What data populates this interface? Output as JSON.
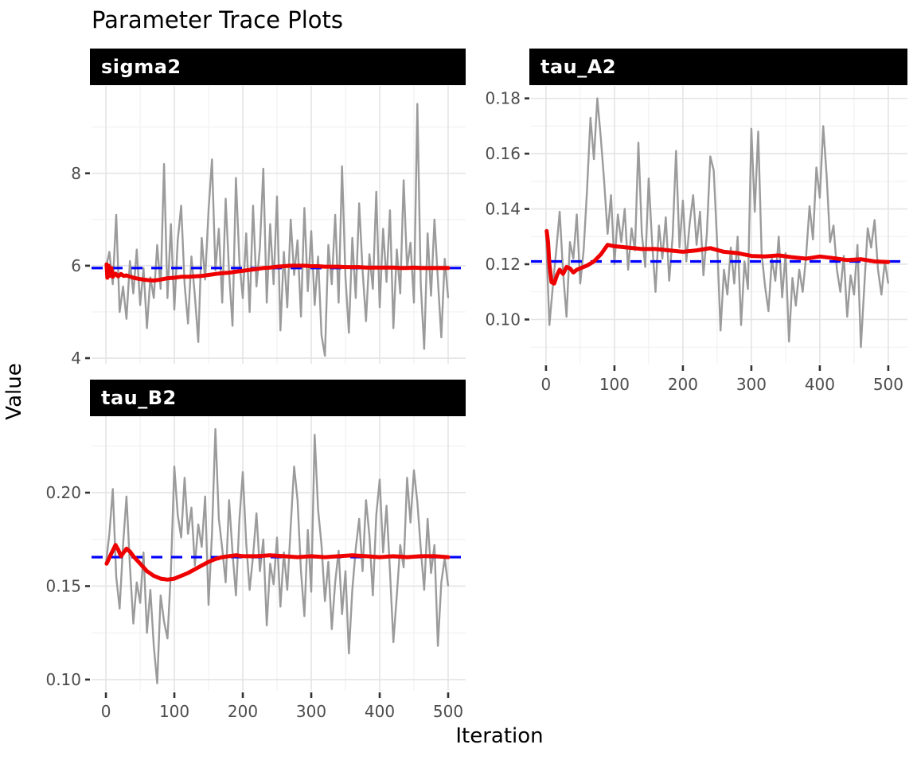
{
  "title": "Parameter Trace Plots",
  "x_axis_title": "Iteration",
  "y_axis_title": "Value",
  "colors": {
    "trace": "#9b9b9b",
    "running_mean": "#ee0000",
    "reference": "#0000ff",
    "grid_major": "#e4e4e4",
    "grid_minor": "#f1f1f1",
    "tick_mark": "#333333",
    "tick_label": "#4d4d4d",
    "strip_bg": "#000000",
    "strip_text": "#ffffff",
    "panel_bg": "#ffffff"
  },
  "chart_data": [
    {
      "type": "line",
      "facet_label": "sigma2",
      "xlim": [
        -21,
        525.6
      ],
      "ylim": [
        3.88,
        9.89
      ],
      "x_ticks": {
        "major": [
          0,
          100,
          200,
          300,
          400,
          500
        ],
        "minor": [
          50,
          150,
          250,
          350,
          450
        ],
        "labels": [
          "0",
          "100",
          "200",
          "300",
          "400",
          "500"
        ],
        "show_labels": false
      },
      "y_ticks": {
        "major": [
          4,
          6,
          8
        ],
        "minor": [
          5,
          7,
          9
        ],
        "labels": [
          "4",
          "6",
          "8"
        ]
      },
      "reference_value": 5.95,
      "series": {
        "trace": {
          "name": "samples",
          "x_start": 0,
          "x_step": 5,
          "values": [
            5.95,
            6.3,
            5.6,
            7.1,
            5.0,
            5.55,
            4.85,
            6.1,
            5.4,
            6.35,
            5.15,
            5.95,
            4.65,
            5.75,
            5.3,
            6.45,
            5.5,
            8.2,
            5.3,
            6.9,
            5.05,
            6.55,
            7.3,
            5.6,
            4.75,
            6.2,
            5.35,
            4.35,
            6.6,
            5.7,
            7.2,
            8.3,
            5.9,
            6.8,
            5.2,
            7.45,
            5.85,
            4.7,
            7.9,
            6.1,
            5.3,
            6.7,
            5.0,
            7.3,
            5.55,
            6.4,
            8.1,
            5.2,
            6.9,
            5.6,
            7.5,
            4.6,
            6.3,
            5.1,
            7.0,
            5.8,
            6.55,
            4.9,
            7.25,
            5.45,
            6.75,
            5.15,
            6.2,
            4.5,
            4.05,
            6.45,
            5.6,
            7.1,
            5.2,
            8.15,
            5.75,
            4.55,
            6.6,
            5.3,
            7.35,
            5.9,
            4.8,
            6.25,
            5.5,
            7.6,
            5.1,
            6.8,
            5.65,
            7.2,
            4.65,
            6.35,
            5.4,
            7.85,
            5.95,
            6.5,
            5.2,
            9.5,
            5.6,
            4.2,
            6.7,
            5.35,
            7.0,
            5.7,
            4.45,
            6.15,
            5.3
          ]
        },
        "running_mean": {
          "name": "running mean",
          "x": [
            1,
            2,
            4,
            6,
            8,
            10,
            14,
            18,
            22,
            26,
            30,
            40,
            50,
            60,
            70,
            80,
            90,
            100,
            110,
            120,
            130,
            140,
            150,
            160,
            170,
            180,
            190,
            200,
            210,
            220,
            230,
            240,
            250,
            260,
            270,
            280,
            290,
            300,
            310,
            320,
            330,
            340,
            350,
            360,
            370,
            380,
            390,
            400,
            410,
            420,
            430,
            440,
            450,
            460,
            470,
            480,
            490,
            500
          ],
          "y": [
            6.03,
            5.74,
            6.0,
            5.78,
            5.95,
            5.76,
            5.83,
            5.77,
            5.82,
            5.78,
            5.79,
            5.74,
            5.71,
            5.69,
            5.68,
            5.7,
            5.73,
            5.74,
            5.76,
            5.76,
            5.77,
            5.78,
            5.8,
            5.82,
            5.84,
            5.85,
            5.87,
            5.89,
            5.91,
            5.93,
            5.95,
            5.96,
            5.98,
            5.99,
            6.0,
            6.0,
            6.0,
            5.99,
            5.99,
            5.98,
            5.98,
            5.98,
            5.97,
            5.97,
            5.97,
            5.96,
            5.96,
            5.96,
            5.96,
            5.96,
            5.95,
            5.95,
            5.96,
            5.95,
            5.95,
            5.95,
            5.95,
            5.95
          ]
        }
      }
    },
    {
      "type": "line",
      "facet_label": "tau_A2",
      "xlim": [
        -22,
        528
      ],
      "ylim": [
        0.084,
        0.1845
      ],
      "x_ticks": {
        "major": [
          0,
          100,
          200,
          300,
          400,
          500
        ],
        "minor": [
          50,
          150,
          250,
          350,
          450
        ],
        "labels": [
          "0",
          "100",
          "200",
          "300",
          "400",
          "500"
        ],
        "show_labels": true
      },
      "y_ticks": {
        "major": [
          0.1,
          0.12,
          0.14,
          0.16,
          0.18
        ],
        "minor": [
          0.09,
          0.11,
          0.13,
          0.15,
          0.17
        ],
        "labels": [
          "0.10",
          "0.12",
          "0.14",
          "0.16",
          "0.18"
        ]
      },
      "reference_value": 0.121,
      "series": {
        "trace": {
          "name": "samples",
          "x_start": 0,
          "x_step": 5,
          "values": [
            0.131,
            0.098,
            0.112,
            0.125,
            0.139,
            0.117,
            0.101,
            0.128,
            0.122,
            0.138,
            0.113,
            0.125,
            0.147,
            0.173,
            0.158,
            0.18,
            0.166,
            0.15,
            0.131,
            0.145,
            0.12,
            0.138,
            0.128,
            0.14,
            0.118,
            0.133,
            0.125,
            0.164,
            0.131,
            0.119,
            0.151,
            0.128,
            0.11,
            0.134,
            0.122,
            0.137,
            0.114,
            0.13,
            0.161,
            0.126,
            0.143,
            0.121,
            0.135,
            0.145,
            0.127,
            0.139,
            0.116,
            0.131,
            0.159,
            0.154,
            0.128,
            0.096,
            0.118,
            0.109,
            0.126,
            0.113,
            0.13,
            0.098,
            0.121,
            0.111,
            0.169,
            0.139,
            0.168,
            0.124,
            0.112,
            0.103,
            0.122,
            0.114,
            0.13,
            0.108,
            0.124,
            0.092,
            0.115,
            0.105,
            0.118,
            0.11,
            0.123,
            0.141,
            0.129,
            0.155,
            0.144,
            0.17,
            0.152,
            0.128,
            0.134,
            0.118,
            0.11,
            0.123,
            0.101,
            0.116,
            0.109,
            0.127,
            0.09,
            0.112,
            0.133,
            0.126,
            0.136,
            0.118,
            0.109,
            0.121,
            0.113
          ]
        },
        "running_mean": {
          "name": "running mean",
          "x": [
            1,
            3,
            5,
            8,
            12,
            16,
            20,
            25,
            30,
            35,
            40,
            45,
            50,
            60,
            70,
            80,
            90,
            100,
            120,
            140,
            160,
            180,
            200,
            220,
            240,
            260,
            280,
            300,
            320,
            340,
            360,
            380,
            400,
            420,
            440,
            460,
            480,
            500
          ],
          "y": [
            0.132,
            0.128,
            0.12,
            0.1135,
            0.113,
            0.116,
            0.118,
            0.1165,
            0.119,
            0.1185,
            0.117,
            0.118,
            0.1185,
            0.1195,
            0.121,
            0.1235,
            0.127,
            0.1265,
            0.126,
            0.1255,
            0.1255,
            0.125,
            0.1245,
            0.125,
            0.1258,
            0.1245,
            0.124,
            0.123,
            0.1228,
            0.1232,
            0.1225,
            0.122,
            0.1228,
            0.1222,
            0.1215,
            0.1218,
            0.121,
            0.1208
          ]
        }
      }
    },
    {
      "type": "line",
      "facet_label": "tau_B2",
      "xlim": [
        -21,
        525.6
      ],
      "ylim": [
        0.094,
        0.2409
      ],
      "x_ticks": {
        "major": [
          0,
          100,
          200,
          300,
          400,
          500
        ],
        "minor": [
          50,
          150,
          250,
          350,
          450
        ],
        "labels": [
          "0",
          "100",
          "200",
          "300",
          "400",
          "500"
        ],
        "show_labels": true
      },
      "y_ticks": {
        "major": [
          0.1,
          0.15,
          0.2
        ],
        "minor": [
          0.125,
          0.175,
          0.225
        ],
        "labels": [
          "0.10",
          "0.15",
          "0.20"
        ]
      },
      "reference_value": 0.1655,
      "series": {
        "trace": {
          "name": "samples",
          "x_start": 0,
          "x_step": 5,
          "values": [
            0.162,
            0.178,
            0.202,
            0.155,
            0.138,
            0.172,
            0.198,
            0.161,
            0.13,
            0.152,
            0.141,
            0.168,
            0.125,
            0.148,
            0.118,
            0.098,
            0.145,
            0.131,
            0.122,
            0.158,
            0.214,
            0.188,
            0.176,
            0.208,
            0.178,
            0.192,
            0.161,
            0.183,
            0.171,
            0.198,
            0.14,
            0.178,
            0.234,
            0.186,
            0.17,
            0.152,
            0.196,
            0.168,
            0.145,
            0.185,
            0.211,
            0.173,
            0.148,
            0.166,
            0.189,
            0.158,
            0.175,
            0.129,
            0.162,
            0.151,
            0.176,
            0.139,
            0.168,
            0.148,
            0.182,
            0.214,
            0.196,
            0.158,
            0.134,
            0.18,
            0.147,
            0.231,
            0.191,
            0.172,
            0.142,
            0.163,
            0.127,
            0.152,
            0.169,
            0.135,
            0.158,
            0.114,
            0.148,
            0.17,
            0.186,
            0.158,
            0.196,
            0.177,
            0.145,
            0.188,
            0.207,
            0.168,
            0.193,
            0.158,
            0.12,
            0.145,
            0.172,
            0.16,
            0.208,
            0.184,
            0.212,
            0.195,
            0.17,
            0.148,
            0.186,
            0.157,
            0.172,
            0.118,
            0.152,
            0.165,
            0.15
          ]
        },
        "running_mean": {
          "name": "running mean",
          "x": [
            1,
            3,
            6,
            10,
            14,
            18,
            22,
            26,
            30,
            35,
            40,
            50,
            60,
            70,
            80,
            90,
            100,
            110,
            120,
            130,
            140,
            150,
            160,
            170,
            180,
            190,
            200,
            220,
            240,
            260,
            280,
            300,
            320,
            340,
            360,
            380,
            400,
            420,
            440,
            460,
            480,
            500
          ],
          "y": [
            0.162,
            0.1635,
            0.166,
            0.169,
            0.172,
            0.1695,
            0.166,
            0.168,
            0.17,
            0.1685,
            0.166,
            0.162,
            0.158,
            0.1555,
            0.154,
            0.1535,
            0.154,
            0.1555,
            0.157,
            0.159,
            0.161,
            0.163,
            0.1645,
            0.1655,
            0.166,
            0.1665,
            0.166,
            0.166,
            0.1665,
            0.166,
            0.1655,
            0.166,
            0.1655,
            0.166,
            0.1665,
            0.166,
            0.1655,
            0.166,
            0.1655,
            0.166,
            0.166,
            0.1655
          ]
        }
      }
    }
  ]
}
